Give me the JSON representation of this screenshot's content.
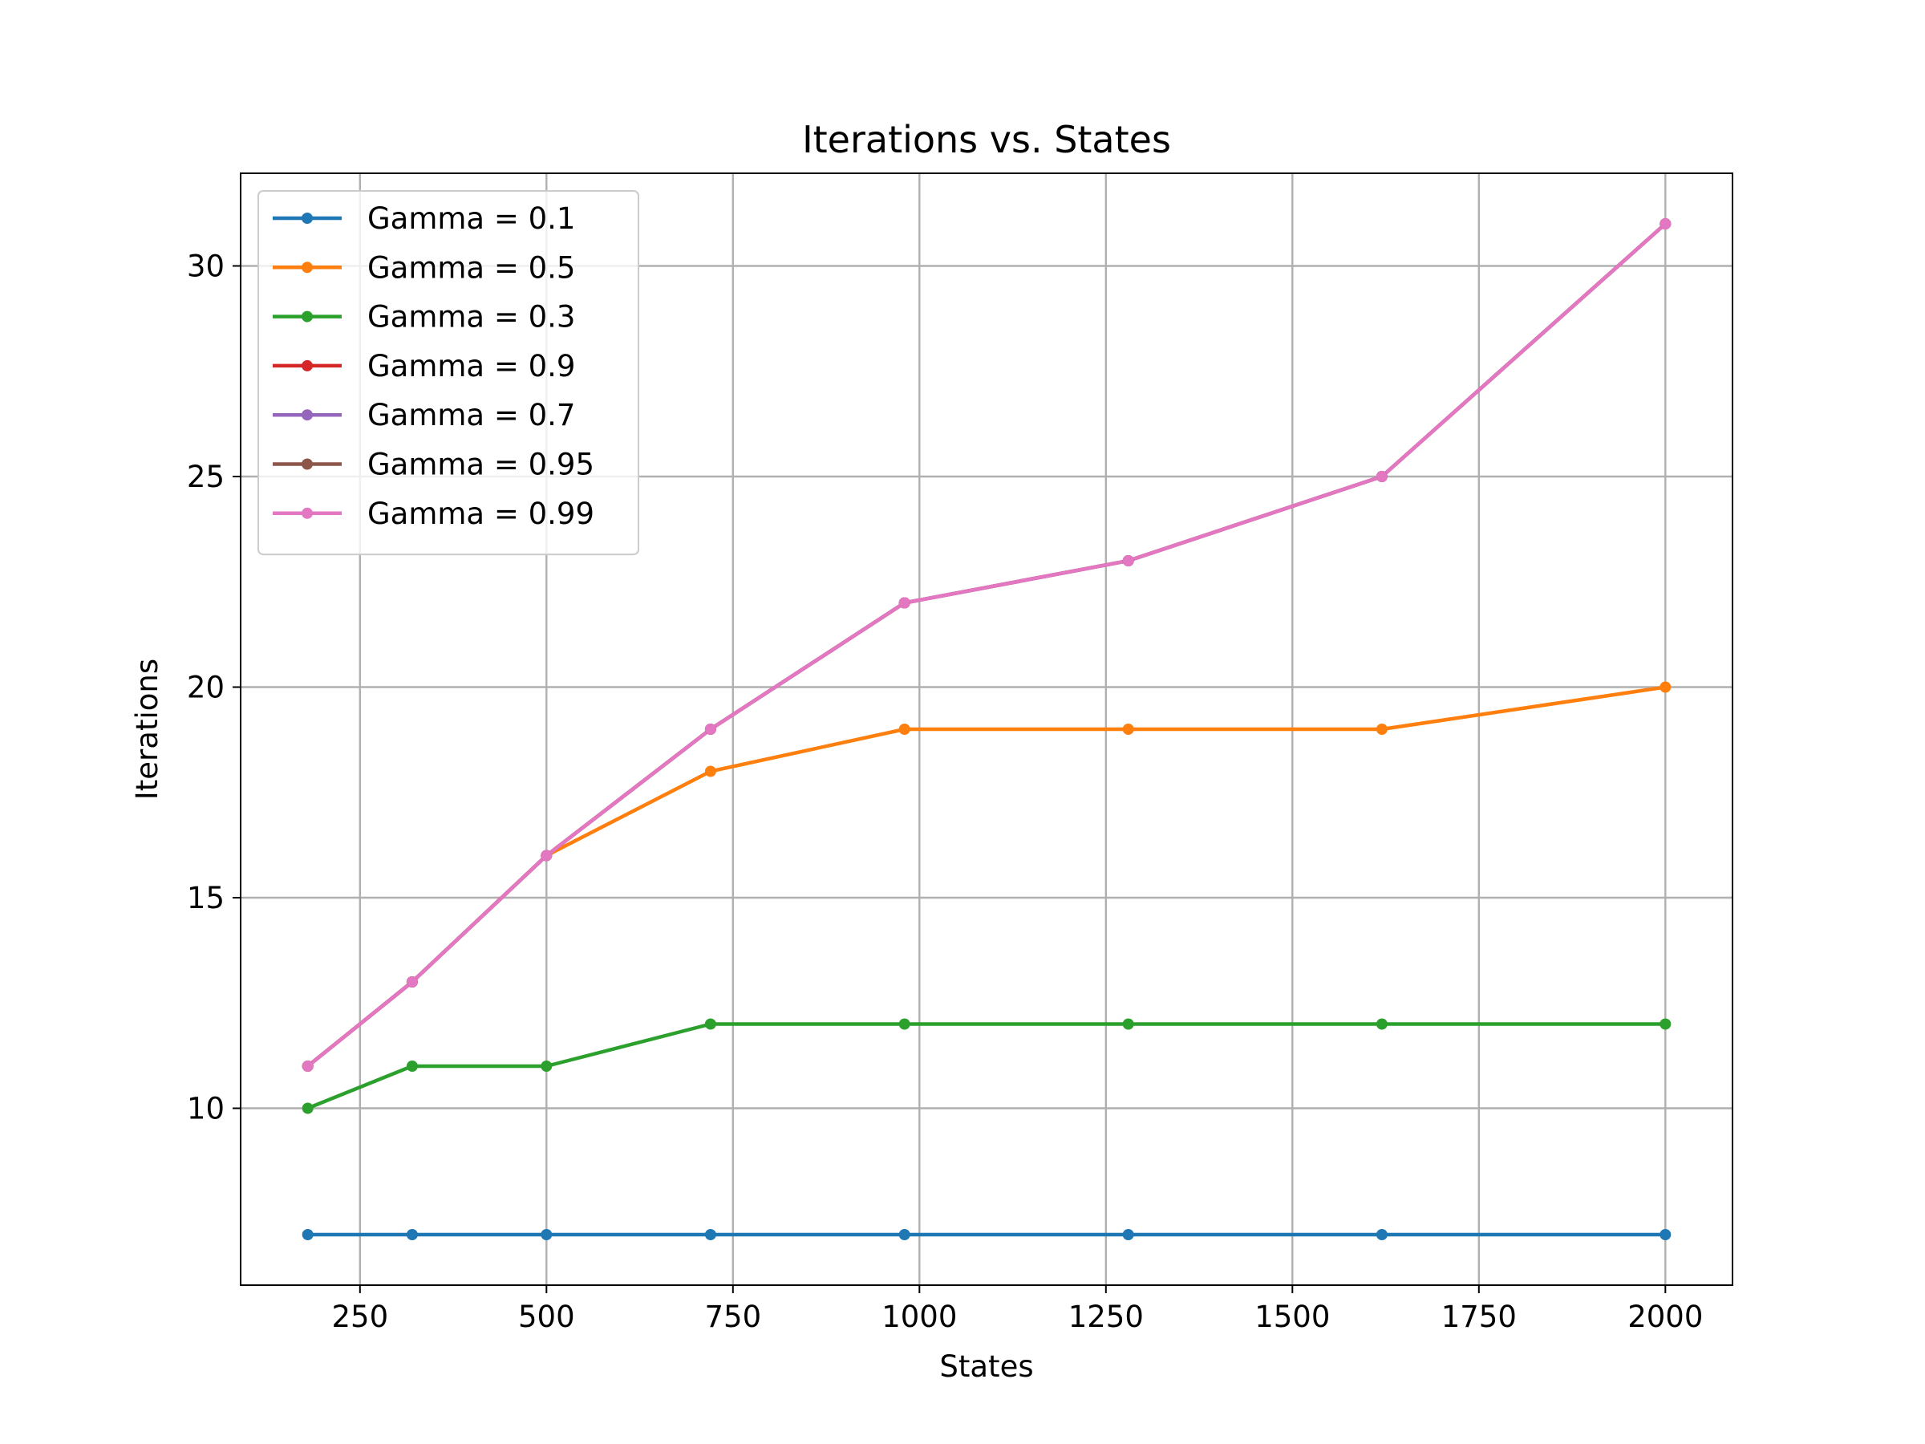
{
  "chart_data": {
    "type": "line",
    "title": "Iterations vs. States",
    "xlabel": "States",
    "ylabel": "Iterations",
    "xlim": [
      90,
      2090
    ],
    "ylim": [
      5.8,
      32.2
    ],
    "xticks": [
      250,
      500,
      750,
      1000,
      1250,
      1500,
      1750,
      2000
    ],
    "xtick_labels": [
      "250",
      "500",
      "750",
      "1000",
      "1250",
      "1500",
      "1750",
      "2000"
    ],
    "yticks": [
      10,
      15,
      20,
      25,
      30
    ],
    "ytick_labels": [
      "10",
      "15",
      "20",
      "25",
      "30"
    ],
    "grid": true,
    "legend_position": "top-left",
    "x": [
      180,
      320,
      500,
      720,
      980,
      1280,
      1620,
      2000
    ],
    "series": [
      {
        "name": "Gamma = 0.1",
        "color": "#1f77b4",
        "values": [
          7,
          7,
          7,
          7,
          7,
          7,
          7,
          7
        ]
      },
      {
        "name": "Gamma = 0.5",
        "color": "#ff7f0e",
        "values": [
          11,
          13,
          16,
          18,
          19,
          19,
          19,
          20
        ]
      },
      {
        "name": "Gamma = 0.3",
        "color": "#2ca02c",
        "values": [
          10,
          11,
          11,
          12,
          12,
          12,
          12,
          12
        ]
      },
      {
        "name": "Gamma = 0.9",
        "color": "#d62728",
        "values": [
          11,
          13,
          16,
          19,
          22,
          23,
          25,
          31
        ]
      },
      {
        "name": "Gamma = 0.7",
        "color": "#9467bd",
        "values": [
          11,
          13,
          16,
          19,
          22,
          23,
          25,
          31
        ]
      },
      {
        "name": "Gamma = 0.95",
        "color": "#8c564b",
        "values": [
          11,
          13,
          16,
          19,
          22,
          23,
          25,
          31
        ]
      },
      {
        "name": "Gamma = 0.99",
        "color": "#e377c2",
        "values": [
          11,
          13,
          16,
          19,
          22,
          23,
          25,
          31
        ]
      }
    ]
  }
}
